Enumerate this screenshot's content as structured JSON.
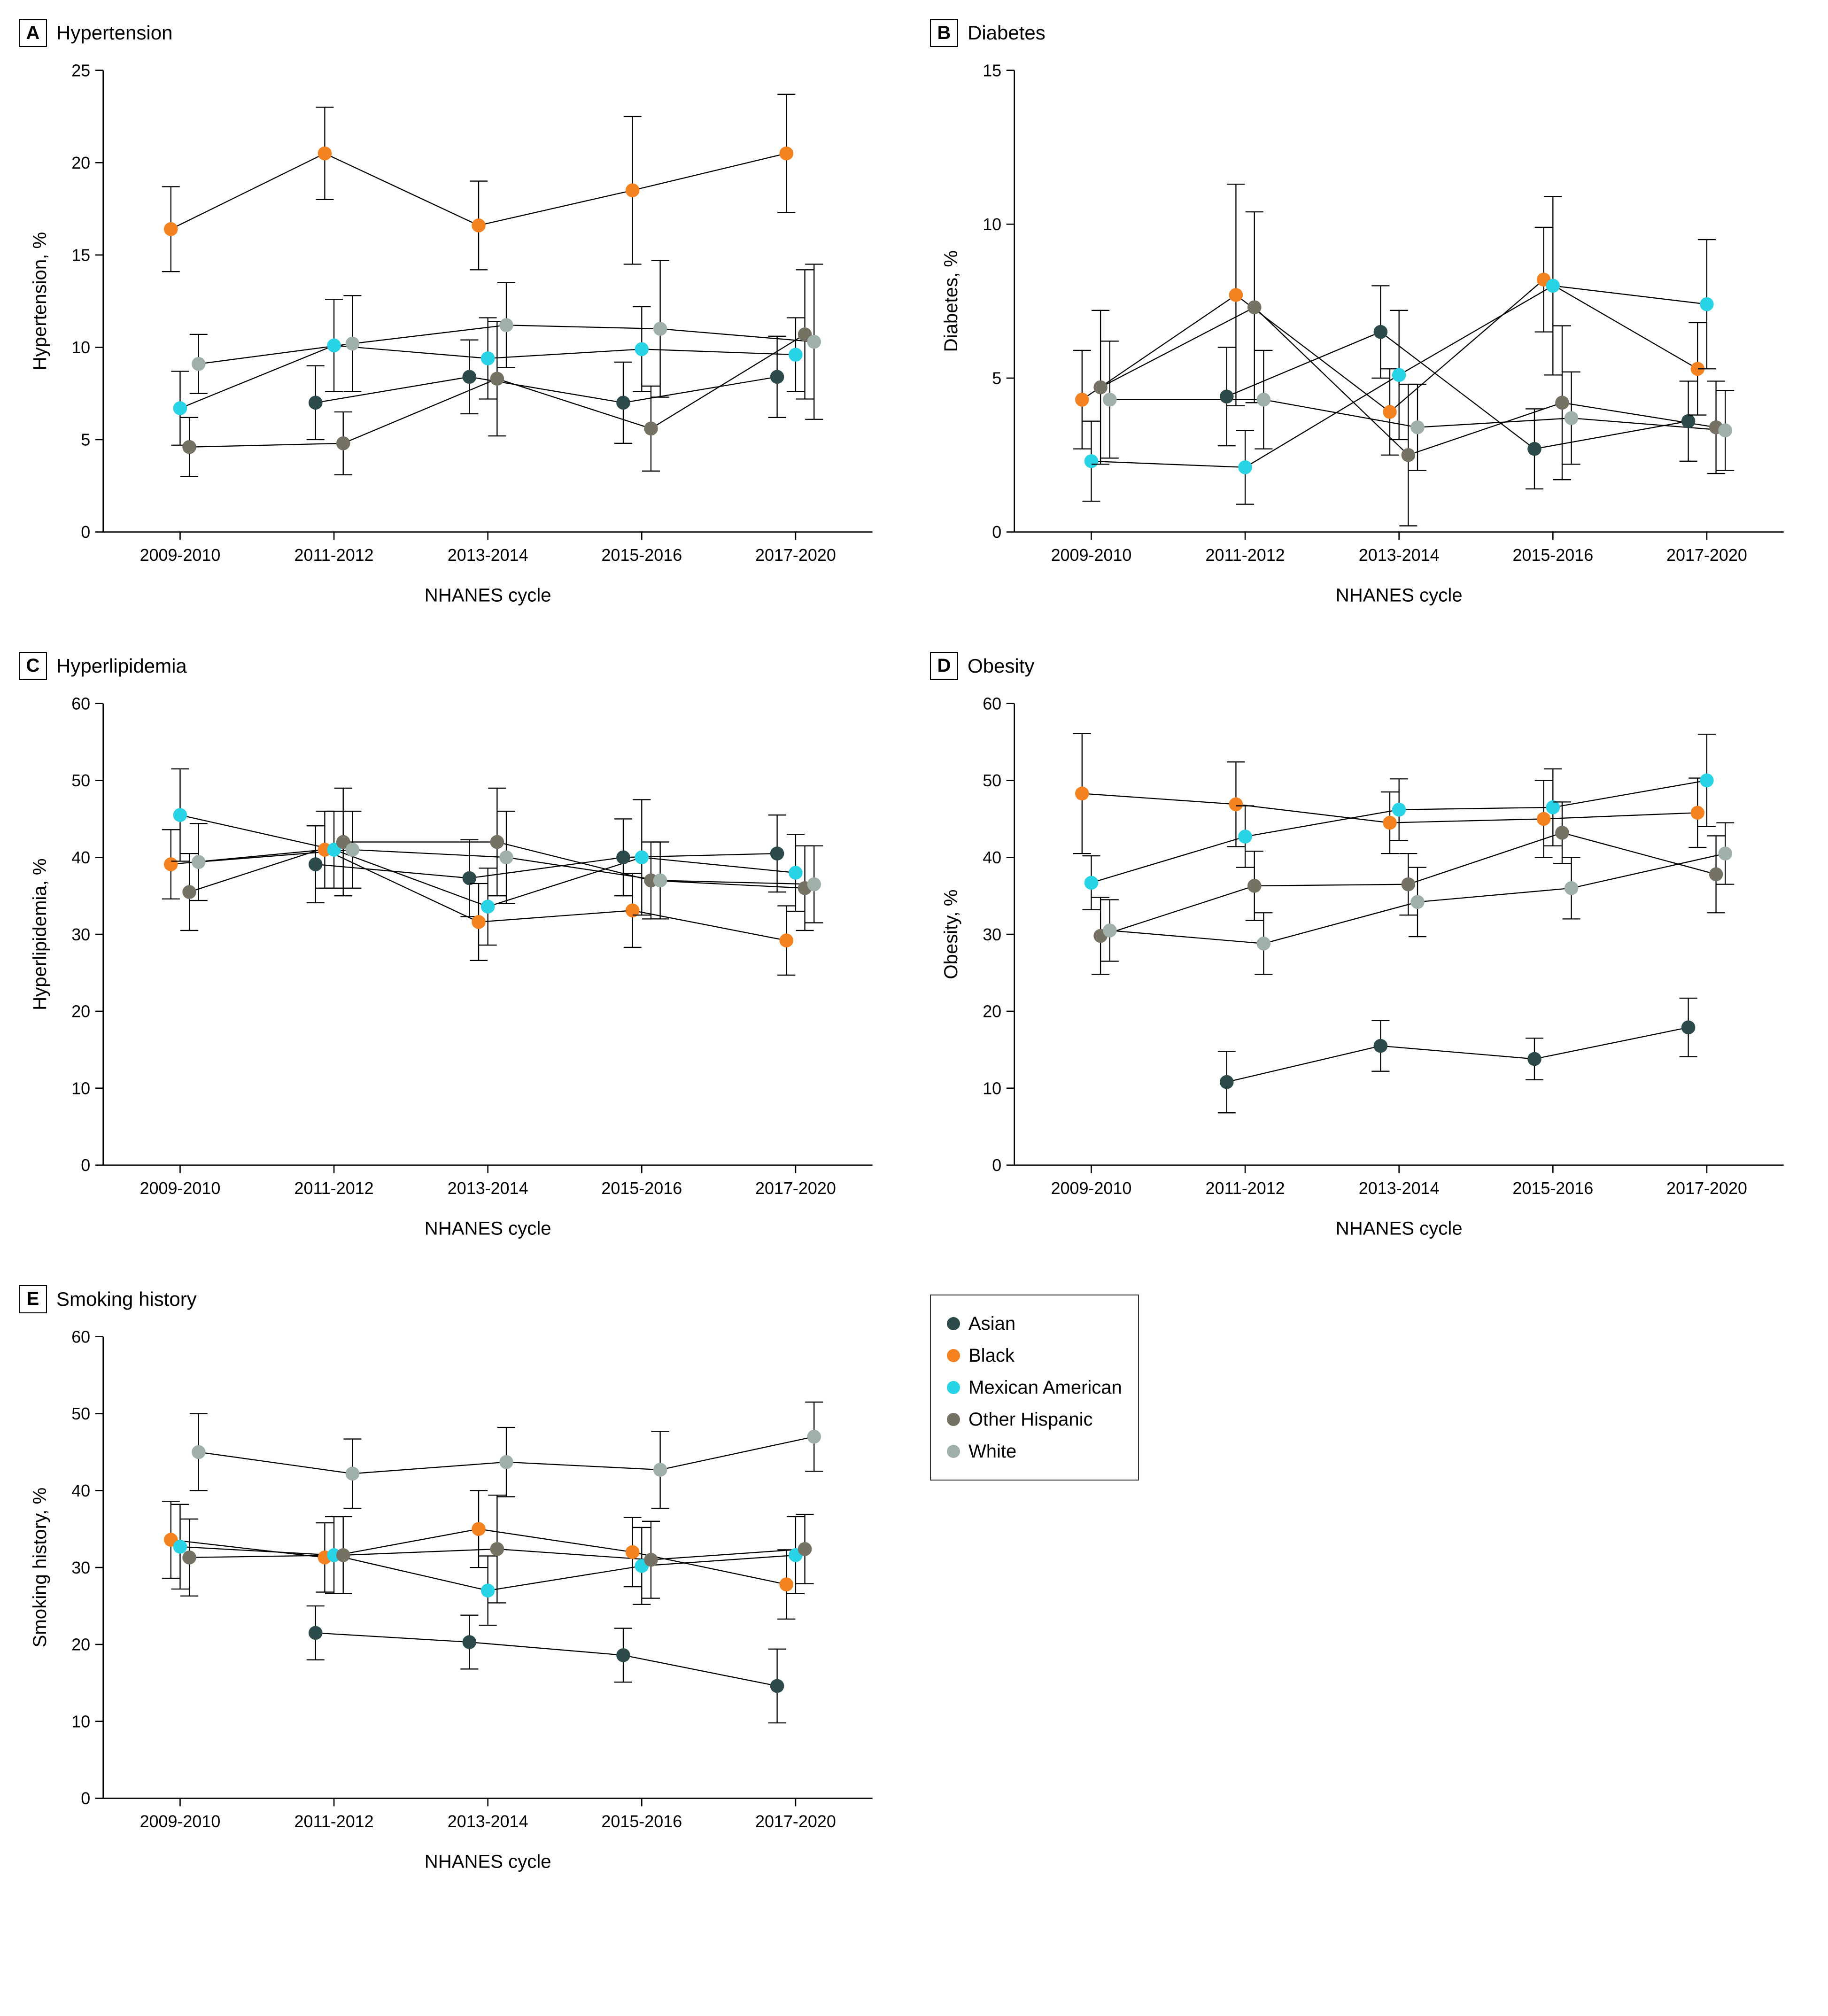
{
  "xlabel": "NHANES cycle",
  "categories": [
    "2009-2010",
    "2011-2012",
    "2013-2014",
    "2015-2016",
    "2017-2020"
  ],
  "axis_fontsize": 38,
  "tick_fontsize": 34,
  "axis_color": "#000000",
  "tick_color": "#000000",
  "marker_radius": 14,
  "line_width": 2.2,
  "error_cap_width": 18,
  "jitter_step": 0.06,
  "groups": [
    {
      "name": "Asian",
      "color": "#2d4a4a"
    },
    {
      "name": "Black",
      "color": "#f58220"
    },
    {
      "name": "Mexican American",
      "color": "#29d3e6"
    },
    {
      "name": "Other Hispanic",
      "color": "#757163"
    },
    {
      "name": "White",
      "color": "#9fb0a8"
    }
  ],
  "panels": [
    {
      "letter": "A",
      "title": "Hypertension",
      "ylabel": "Hypertension, %",
      "ylim": [
        0,
        25
      ],
      "ytick_step": 5,
      "series": {
        "Asian": {
          "y": [
            null,
            7.0,
            8.4,
            7.0,
            8.4
          ],
          "err": [
            null,
            2.0,
            2.0,
            2.2,
            2.2
          ]
        },
        "Black": {
          "y": [
            16.4,
            20.5,
            16.6,
            18.5,
            20.5
          ],
          "err": [
            2.3,
            2.5,
            2.4,
            4.0,
            3.2
          ]
        },
        "Mexican American": {
          "y": [
            6.7,
            10.1,
            9.4,
            9.9,
            9.6
          ],
          "err": [
            2.0,
            2.5,
            2.2,
            2.3,
            2.0
          ]
        },
        "Other Hispanic": {
          "y": [
            4.6,
            4.8,
            8.3,
            5.6,
            10.7
          ],
          "err": [
            1.6,
            1.7,
            3.1,
            2.3,
            3.5
          ]
        },
        "White": {
          "y": [
            9.1,
            10.2,
            11.2,
            11.0,
            10.3
          ],
          "err": [
            1.6,
            2.6,
            2.3,
            3.7,
            4.2
          ]
        }
      }
    },
    {
      "letter": "B",
      "title": "Diabetes",
      "ylabel": "Diabetes, %",
      "ylim": [
        0,
        15
      ],
      "ytick_step": 5,
      "series": {
        "Asian": {
          "y": [
            null,
            4.4,
            6.5,
            2.7,
            3.6
          ],
          "err": [
            null,
            1.6,
            1.5,
            1.3,
            1.3
          ]
        },
        "Black": {
          "y": [
            4.3,
            7.7,
            3.9,
            8.2,
            5.3
          ],
          "err": [
            1.6,
            3.6,
            1.4,
            1.7,
            1.5
          ]
        },
        "Mexican American": {
          "y": [
            2.3,
            2.1,
            5.1,
            8.0,
            7.4
          ],
          "err": [
            1.3,
            1.2,
            2.1,
            2.9,
            2.1
          ]
        },
        "Other Hispanic": {
          "y": [
            4.7,
            7.3,
            2.5,
            4.2,
            3.4
          ],
          "err": [
            2.5,
            3.1,
            2.3,
            2.5,
            1.5
          ]
        },
        "White": {
          "y": [
            4.3,
            4.3,
            3.4,
            3.7,
            3.3
          ],
          "err": [
            1.9,
            1.6,
            1.4,
            1.5,
            1.3
          ]
        }
      }
    },
    {
      "letter": "C",
      "title": "Hyperlipidemia",
      "ylabel": "Hyperlipidemia, %",
      "ylim": [
        0,
        60
      ],
      "ytick_step": 10,
      "series": {
        "Asian": {
          "y": [
            null,
            39.1,
            37.3,
            40.0,
            40.5
          ],
          "err": [
            null,
            5.0,
            5.0,
            5.0,
            5.0
          ]
        },
        "Black": {
          "y": [
            39.1,
            41.0,
            31.6,
            33.1,
            29.2
          ],
          "err": [
            4.5,
            5.0,
            5.0,
            4.8,
            4.5
          ]
        },
        "Mexican American": {
          "y": [
            45.5,
            41.0,
            33.6,
            40.0,
            38.0
          ],
          "err": [
            6.0,
            5.0,
            5.0,
            7.5,
            5.0
          ]
        },
        "Other Hispanic": {
          "y": [
            35.5,
            42.0,
            42.0,
            37.0,
            36.0
          ],
          "err": [
            5.0,
            7.0,
            7.0,
            5.0,
            5.5
          ]
        },
        "White": {
          "y": [
            39.4,
            41.0,
            40.0,
            37.0,
            36.5
          ],
          "err": [
            5.0,
            5.0,
            6.0,
            5.0,
            5.0
          ]
        }
      }
    },
    {
      "letter": "D",
      "title": "Obesity",
      "ylabel": "Obesity, %",
      "ylim": [
        0,
        60
      ],
      "ytick_step": 10,
      "series": {
        "Asian": {
          "y": [
            null,
            10.8,
            15.5,
            13.8,
            17.9
          ],
          "err": [
            null,
            4.0,
            3.3,
            2.7,
            3.8
          ]
        },
        "Black": {
          "y": [
            48.3,
            46.9,
            44.5,
            45.0,
            45.8
          ],
          "err": [
            7.8,
            5.5,
            4.0,
            5.0,
            4.5
          ]
        },
        "Mexican American": {
          "y": [
            36.7,
            42.7,
            46.2,
            46.5,
            50.0
          ],
          "err": [
            3.5,
            4.0,
            4.0,
            5.0,
            6.0
          ]
        },
        "Other Hispanic": {
          "y": [
            29.8,
            36.3,
            36.5,
            43.2,
            37.8
          ],
          "err": [
            5.0,
            4.5,
            4.0,
            4.0,
            5.0
          ]
        },
        "White": {
          "y": [
            30.5,
            28.8,
            34.2,
            36.0,
            40.5
          ],
          "err": [
            4.0,
            4.0,
            4.5,
            4.0,
            4.0
          ]
        }
      }
    },
    {
      "letter": "E",
      "title": "Smoking history",
      "ylabel": "Smoking history, %",
      "ylim": [
        0,
        60
      ],
      "ytick_step": 10,
      "series": {
        "Asian": {
          "y": [
            null,
            21.5,
            20.3,
            18.6,
            14.6
          ],
          "err": [
            null,
            3.5,
            3.5,
            3.5,
            4.8
          ]
        },
        "Black": {
          "y": [
            33.6,
            31.3,
            35.0,
            32.0,
            27.8
          ],
          "err": [
            5.0,
            4.5,
            5.0,
            4.5,
            4.5
          ]
        },
        "Mexican American": {
          "y": [
            32.7,
            31.6,
            27.0,
            30.2,
            31.6
          ],
          "err": [
            5.5,
            5.0,
            4.5,
            5.0,
            5.0
          ]
        },
        "Other Hispanic": {
          "y": [
            31.3,
            31.6,
            32.4,
            31.0,
            32.4
          ],
          "err": [
            5.0,
            5.0,
            7.0,
            5.0,
            4.5
          ]
        },
        "White": {
          "y": [
            45.0,
            42.2,
            43.7,
            42.7,
            47.0
          ],
          "err": [
            5.0,
            4.5,
            4.5,
            5.0,
            4.5
          ]
        }
      }
    }
  ],
  "legend_title": null
}
